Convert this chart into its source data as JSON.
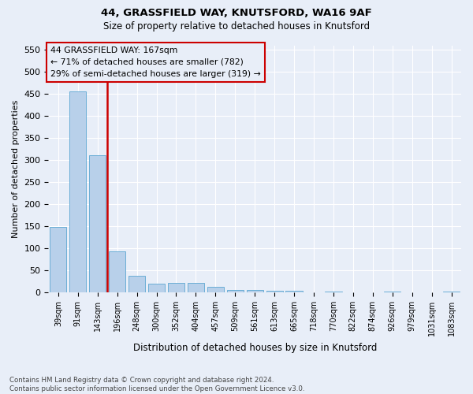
{
  "title1": "44, GRASSFIELD WAY, KNUTSFORD, WA16 9AF",
  "title2": "Size of property relative to detached houses in Knutsford",
  "xlabel": "Distribution of detached houses by size in Knutsford",
  "ylabel": "Number of detached properties",
  "categories": [
    "39sqm",
    "91sqm",
    "143sqm",
    "196sqm",
    "248sqm",
    "300sqm",
    "352sqm",
    "404sqm",
    "457sqm",
    "509sqm",
    "561sqm",
    "613sqm",
    "665sqm",
    "718sqm",
    "770sqm",
    "822sqm",
    "874sqm",
    "926sqm",
    "979sqm",
    "1031sqm",
    "1083sqm"
  ],
  "values": [
    148,
    455,
    311,
    93,
    38,
    20,
    22,
    22,
    13,
    6,
    5,
    4,
    4,
    0,
    3,
    0,
    0,
    3,
    0,
    0,
    3
  ],
  "bar_color": "#b8d0ea",
  "bar_edge_color": "#6baed6",
  "bg_color": "#e8eef8",
  "grid_color": "#ffffff",
  "vline_color": "#cc0000",
  "vline_x_index": 2.5,
  "annotation_line1": "44 GRASSFIELD WAY: 167sqm",
  "annotation_line2": "← 71% of detached houses are smaller (782)",
  "annotation_line3": "29% of semi-detached houses are larger (319) →",
  "annotation_box_color": "#cc0000",
  "ylim": [
    0,
    560
  ],
  "yticks": [
    0,
    50,
    100,
    150,
    200,
    250,
    300,
    350,
    400,
    450,
    500,
    550
  ],
  "footnote": "Contains HM Land Registry data © Crown copyright and database right 2024.\nContains public sector information licensed under the Open Government Licence v3.0.",
  "figsize": [
    6.0,
    5.0
  ],
  "dpi": 100
}
